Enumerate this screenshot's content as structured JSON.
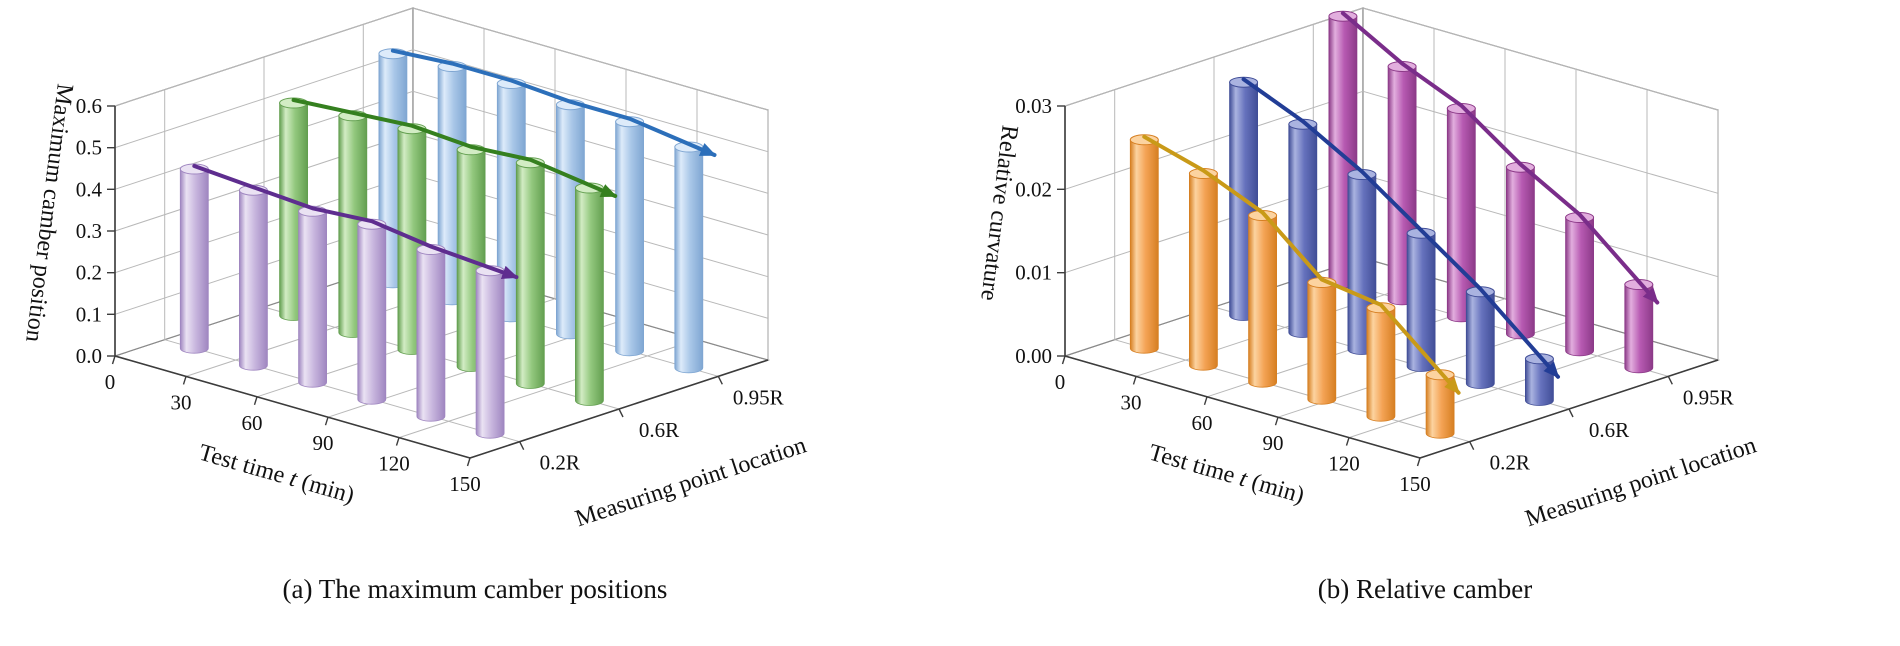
{
  "page": {
    "background": "#ffffff"
  },
  "chart_data": [
    {
      "type": "bar",
      "style": "3d-cylinder",
      "caption": "(a) The maximum camber positions",
      "zlabel": "Maximum camber position",
      "xlabel": "Test time t (min)",
      "xlabel_parts": [
        [
          "Test time ",
          false
        ],
        [
          "t",
          true
        ],
        [
          " (min)",
          false
        ]
      ],
      "ylabel": "Measuring point location",
      "x_ticks": [
        "0",
        "30",
        "60",
        "90",
        "120",
        "150"
      ],
      "z_ticks": [
        "0.0",
        "0.1",
        "0.2",
        "0.3",
        "0.4",
        "0.5",
        "0.6"
      ],
      "zlim": [
        0,
        0.6
      ],
      "grid": true,
      "categories": [
        "0.2R",
        "0.6R",
        "0.95R"
      ],
      "series": [
        {
          "name": "0.2R",
          "values": [
            0.43,
            0.42,
            0.41,
            0.42,
            0.4,
            0.39
          ],
          "bar_colors": {
            "light": "#eae2f3",
            "mid": "#c8b6de",
            "dark": "#9f86c0"
          },
          "line_color": "#5e2d8f"
        },
        {
          "name": "0.6R",
          "values": [
            0.51,
            0.52,
            0.53,
            0.52,
            0.53,
            0.51
          ],
          "bar_colors": {
            "light": "#d2ecc4",
            "mid": "#93c87e",
            "dark": "#639f50"
          },
          "line_color": "#35801f"
        },
        {
          "name": "0.95R",
          "values": [
            0.55,
            0.56,
            0.56,
            0.55,
            0.55,
            0.53
          ],
          "bar_colors": {
            "light": "#ddebfa",
            "mid": "#a9c7e8",
            "dark": "#7fa6d2"
          },
          "line_color": "#2c6fba"
        }
      ]
    },
    {
      "type": "bar",
      "style": "3d-cylinder",
      "caption": "(b) Relative camber",
      "zlabel": "Relative curvature",
      "xlabel": "Test time t (min)",
      "xlabel_parts": [
        [
          "Test time ",
          false
        ],
        [
          "t",
          true
        ],
        [
          " (min)",
          false
        ]
      ],
      "ylabel": "Measuring point location",
      "x_ticks": [
        "0",
        "30",
        "60",
        "90",
        "120",
        "150"
      ],
      "z_ticks": [
        "0.00",
        "0.01",
        "0.02",
        "0.03"
      ],
      "zlim": [
        0,
        0.03
      ],
      "grid": true,
      "categories": [
        "0.2R",
        "0.6R",
        "0.95R"
      ],
      "series": [
        {
          "name": "0.2R",
          "values": [
            0.025,
            0.023,
            0.02,
            0.014,
            0.013,
            0.007
          ],
          "bar_colors": {
            "light": "#fcd3a0",
            "mid": "#f4a355",
            "dark": "#d67f22"
          },
          "line_color": "#c99a18"
        },
        {
          "name": "0.6R",
          "values": [
            0.028,
            0.025,
            0.021,
            0.016,
            0.011,
            0.005
          ],
          "bar_colors": {
            "light": "#aab3e0",
            "mid": "#6672bd",
            "dark": "#414e97"
          },
          "line_color": "#223d96"
        },
        {
          "name": "0.95R",
          "values": [
            0.032,
            0.028,
            0.025,
            0.02,
            0.016,
            0.01
          ],
          "bar_colors": {
            "light": "#e2aede",
            "mid": "#b75ab2",
            "dark": "#8c3a88"
          },
          "line_color": "#7a2d8a"
        }
      ]
    }
  ]
}
